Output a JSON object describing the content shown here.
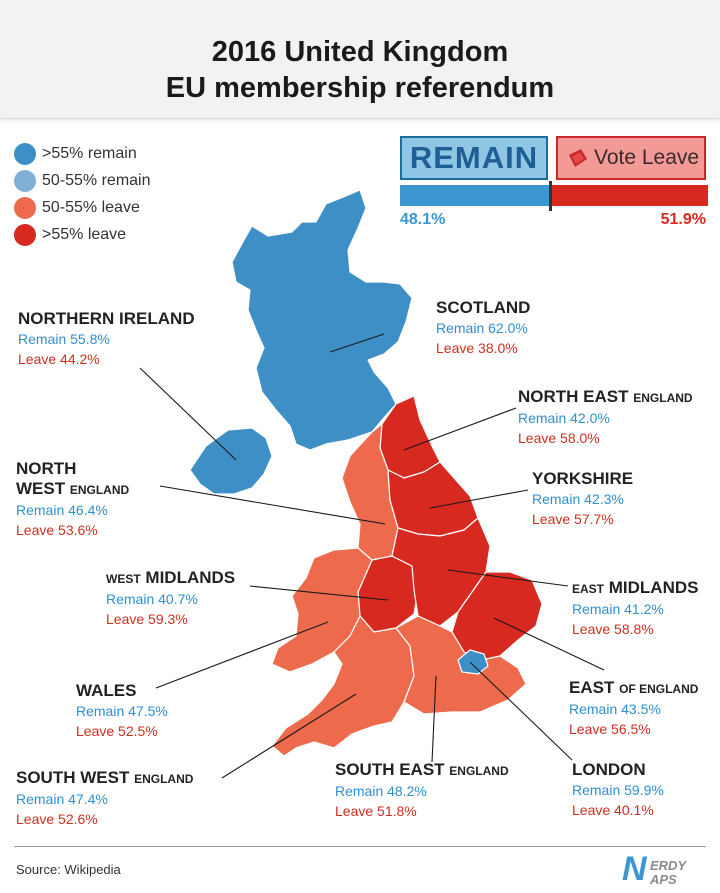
{
  "title": {
    "line1": "2016 United Kingdom",
    "line2": "EU membership referendum"
  },
  "legend": [
    {
      "label": ">55% remain",
      "color": "#3d8fc6"
    },
    {
      "label": "50-55% remain",
      "color": "#7fb1d8"
    },
    {
      "label": "50-55% leave",
      "color": "#ee6a4c"
    },
    {
      "label": ">55% leave",
      "color": "#d7291f"
    }
  ],
  "campaigns": {
    "remain_logo": "REMAIN",
    "leave_logo": "Vote Leave",
    "remain_pct": "48.1%",
    "leave_pct": "51.9%",
    "remain_share": 48.1
  },
  "regions": {
    "scotland": {
      "name": "SCOTLAND",
      "remain": "Remain 62.0%",
      "leave": "Leave 38.0%",
      "color": "#3d8fc6"
    },
    "northern_ireland": {
      "name": "NORTHERN IRELAND",
      "remain": "Remain 55.8%",
      "leave": "Leave 44.2%",
      "color": "#3d8fc6"
    },
    "north_east": {
      "name_big": "NORTH EAST",
      "name_small": "ENGLAND",
      "remain": "Remain 42.0%",
      "leave": "Leave 58.0%",
      "color": "#d7291f"
    },
    "north_west": {
      "name_line1": "NORTH",
      "name_big": "WEST",
      "name_small": "ENGLAND",
      "remain": "Remain 46.4%",
      "leave": "Leave 53.6%",
      "color": "#ee6a4c"
    },
    "yorkshire": {
      "name": "YORKSHIRE",
      "remain": "Remain 42.3%",
      "leave": "Leave 57.7%",
      "color": "#d7291f"
    },
    "west_midlands": {
      "name_small": "WEST",
      "name_big": "MIDLANDS",
      "remain": "Remain 40.7%",
      "leave": "Leave 59.3%",
      "color": "#d7291f"
    },
    "east_midlands": {
      "name_small": "EAST",
      "name_big": "MIDLANDS",
      "remain": "Remain 41.2%",
      "leave": "Leave 58.8%",
      "color": "#d7291f"
    },
    "wales": {
      "name": "WALES",
      "remain": "Remain 47.5%",
      "leave": "Leave 52.5%",
      "color": "#ee6a4c"
    },
    "east_of_england": {
      "name_big": "EAST",
      "name_small": "OF ENGLAND",
      "remain": "Remain 43.5%",
      "leave": "Leave 56.5%",
      "color": "#d7291f"
    },
    "south_west": {
      "name_big": "SOUTH WEST",
      "name_small": "ENGLAND",
      "remain": "Remain 47.4%",
      "leave": "Leave 52.6%",
      "color": "#ee6a4c"
    },
    "south_east": {
      "name_big": "SOUTH EAST",
      "name_small": "ENGLAND",
      "remain": "Remain 48.2%",
      "leave": "Leave 51.8%",
      "color": "#ee6a4c"
    },
    "london": {
      "name": "LONDON",
      "remain": "Remain 59.9%",
      "leave": "Leave 40.1%",
      "color": "#3d8fc6"
    }
  },
  "footer": {
    "source": "Source: Wikipedia",
    "brand_line1": "ERDY",
    "brand_line2": "APS",
    "brand_initial": "N"
  }
}
